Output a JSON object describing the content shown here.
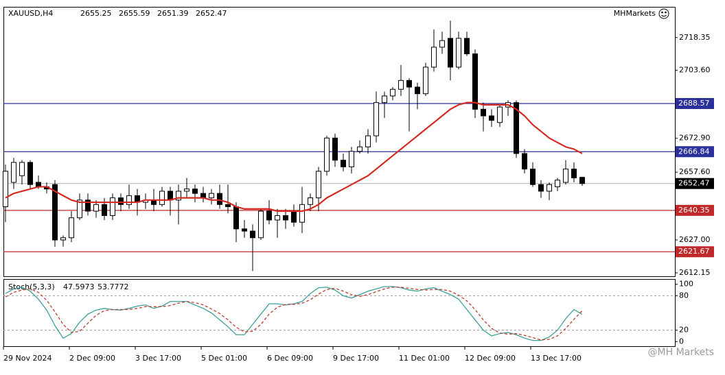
{
  "chart_data": [
    {
      "type": "candlestick",
      "symbol": "XAUUSD,H4",
      "brand": "MHMarkets",
      "watermark": "@MH Markets",
      "categories": [
        "29 Nov 2024",
        null,
        null,
        null,
        null,
        null,
        null,
        null,
        "2 Dec 09:00",
        null,
        null,
        null,
        null,
        null,
        null,
        null,
        "3 Dec 17:00",
        null,
        null,
        null,
        null,
        null,
        null,
        null,
        "5 Dec 01:00",
        null,
        null,
        null,
        null,
        null,
        null,
        null,
        "6 Dec 09:00",
        null,
        null,
        null,
        null,
        null,
        null,
        null,
        "9 Dec 17:00",
        null,
        null,
        null,
        null,
        null,
        null,
        null,
        "11 Dec 01:00",
        null,
        null,
        null,
        null,
        null,
        null,
        null,
        "12 Dec 09:00",
        null,
        null,
        null,
        null,
        null,
        null,
        null,
        "13 Dec 17:00",
        null,
        null,
        null,
        null,
        null,
        null
      ],
      "open": [
        2642,
        2653,
        2656,
        2662,
        2653,
        2651,
        2652,
        2627,
        2628,
        2637,
        2645,
        2640,
        2643,
        2638,
        2646,
        2643,
        2647,
        2644,
        2645,
        2643,
        2649,
        2645,
        2649,
        2650,
        2648,
        2646,
        2648,
        2643,
        2642,
        2632,
        2631,
        2628,
        2640,
        2636,
        2638,
        2640,
        2635,
        2643,
        2646,
        2658,
        2673,
        2663,
        2660,
        2667,
        2669,
        2674,
        2689,
        2692,
        2695,
        2699,
        2696,
        2693,
        2705,
        2714,
        2718,
        2705,
        2718,
        2711,
        2686,
        2683,
        2680,
        2687,
        2689,
        2666,
        2659,
        2652,
        2649,
        2651,
        2653,
        2659,
        2655.25
      ],
      "high": [
        2661,
        2664,
        2663,
        2663,
        2656,
        2653,
        2654,
        2629,
        2640,
        2648,
        2648,
        2645,
        2646,
        2648,
        2648,
        2652,
        2650,
        2648,
        2650,
        2651,
        2651,
        2652,
        2655,
        2652,
        2651,
        2650,
        2652,
        2652,
        2644,
        2636,
        2634,
        2641,
        2645,
        2641,
        2641,
        2643,
        2651,
        2648,
        2660,
        2674,
        2675,
        2666,
        2669,
        2672,
        2677,
        2694,
        2694,
        2696,
        2706,
        2700,
        2698,
        2707,
        2722,
        2721,
        2726,
        2721,
        2721,
        2713,
        2689,
        2686,
        2688,
        2690,
        2690,
        2668,
        2662,
        2654,
        2653,
        2655,
        2663,
        2662,
        2655.59
      ],
      "low": [
        2635,
        2650,
        2652,
        2650,
        2650,
        2648,
        2624,
        2624,
        2626,
        2636,
        2638,
        2637,
        2636,
        2636,
        2640,
        2641,
        2638,
        2641,
        2640,
        2642,
        2638,
        2634,
        2646,
        2644,
        2644,
        2643,
        2641,
        2639,
        2626,
        2628,
        2613,
        2627,
        2634,
        2628,
        2632,
        2633,
        2630,
        2640,
        2640,
        2656,
        2660,
        2658,
        2657,
        2666,
        2666,
        2671,
        2682,
        2690,
        2692,
        2676,
        2686,
        2692,
        2703,
        2711,
        2699,
        2704,
        2710,
        2682,
        2676,
        2678,
        2678,
        2683,
        2664,
        2657,
        2651,
        2646,
        2645,
        2649,
        2652,
        2653,
        2651.39
      ],
      "close": [
        2658,
        2662,
        2662,
        2652,
        2651,
        2650,
        2627,
        2628,
        2637,
        2645,
        2640,
        2643,
        2638,
        2646,
        2643,
        2647,
        2644,
        2645,
        2643,
        2649,
        2645,
        2649,
        2650,
        2648,
        2646,
        2648,
        2643,
        2642,
        2632,
        2631,
        2628,
        2640,
        2636,
        2638,
        2636,
        2635,
        2643,
        2646,
        2658,
        2673,
        2663,
        2660,
        2667,
        2669,
        2674,
        2689,
        2692,
        2695,
        2699,
        2696,
        2693,
        2705,
        2714,
        2717,
        2705,
        2718,
        2711,
        2686,
        2683,
        2681,
        2687,
        2689,
        2666,
        2659,
        2652,
        2649,
        2652,
        2654,
        2659,
        2655,
        2652.47
      ],
      "up_color": "#ffffff",
      "down_color": "#000000",
      "moving_average": {
        "color": "#d42a20",
        "values": [
          2646,
          2648,
          2649,
          2650,
          2651,
          2651,
          2649,
          2647,
          2645,
          2644,
          2644,
          2644,
          2644,
          2644,
          2644,
          2644,
          2644,
          2645,
          2645,
          2645,
          2645,
          2646,
          2646,
          2646,
          2646,
          2645,
          2645,
          2644,
          2642,
          2641,
          2641,
          2641,
          2641,
          2640,
          2640,
          2640,
          2640,
          2641,
          2643,
          2646,
          2648,
          2650,
          2652,
          2654,
          2656,
          2659,
          2662,
          2665,
          2668,
          2671,
          2674,
          2677,
          2680,
          2683,
          2686,
          2688,
          2689,
          2689,
          2688,
          2688,
          2688,
          2688,
          2686,
          2683,
          2679,
          2676,
          2673,
          2671,
          2669,
          2668,
          2666
        ]
      },
      "levels": [
        {
          "value": 2688.57,
          "color": "#2a2f9a"
        },
        {
          "value": 2666.84,
          "color": "#2a2f9a"
        },
        {
          "value": 2640.35,
          "color": "#c0282a"
        },
        {
          "value": 2621.67,
          "color": "#c0282a"
        }
      ],
      "last_price_color": "#b0b0b0",
      "ylim": [
        2610.6,
        2731.9
      ],
      "yticks": [
        2718.35,
        {
          "value": 2703.6,
          "label": "2703.60"
        },
        {
          "value": 2672.9,
          "label": "2672.90"
        },
        {
          "value": 2657.6,
          "label": "2657.60"
        },
        {
          "value": 2627,
          "label": "2627.00"
        },
        2612.15
      ]
    },
    {
      "type": "line",
      "title": "Stoch(5,3,3)",
      "ylim": [
        -8,
        108
      ],
      "yticks": [
        100,
        80,
        20,
        0
      ],
      "levels": [
        80,
        20
      ],
      "series": [
        {
          "color": "#3a9f9a",
          "dash": false,
          "values": [
            84,
            92,
            95,
            88,
            74,
            55,
            28,
            6,
            14,
            34,
            48,
            55,
            58,
            56,
            55,
            58,
            62,
            64,
            58,
            62,
            70,
            70,
            70,
            64,
            58,
            50,
            38,
            26,
            12,
            12,
            30,
            48,
            66,
            66,
            64,
            66,
            70,
            84,
            94,
            95,
            90,
            80,
            76,
            82,
            88,
            92,
            96,
            96,
            94,
            90,
            88,
            92,
            94,
            88,
            82,
            74,
            56,
            38,
            20,
            10,
            14,
            16,
            12,
            6,
            2,
            2,
            8,
            20,
            40,
            56,
            47.5973
          ]
        },
        {
          "color": "#c0392b",
          "dash": true,
          "values": [
            78,
            86,
            90,
            92,
            86,
            72,
            52,
            30,
            16,
            18,
            32,
            46,
            54,
            56,
            56,
            56,
            58,
            61,
            61,
            61,
            63,
            67,
            70,
            68,
            64,
            57,
            49,
            38,
            25,
            17,
            18,
            30,
            48,
            60,
            65,
            65,
            67,
            73,
            83,
            91,
            93,
            88,
            82,
            79,
            82,
            87,
            92,
            95,
            95,
            93,
            91,
            90,
            91,
            91,
            88,
            81,
            71,
            56,
            38,
            23,
            15,
            13,
            14,
            11,
            7,
            3,
            4,
            10,
            23,
            39,
            53.7772
          ]
        }
      ]
    }
  ]
}
